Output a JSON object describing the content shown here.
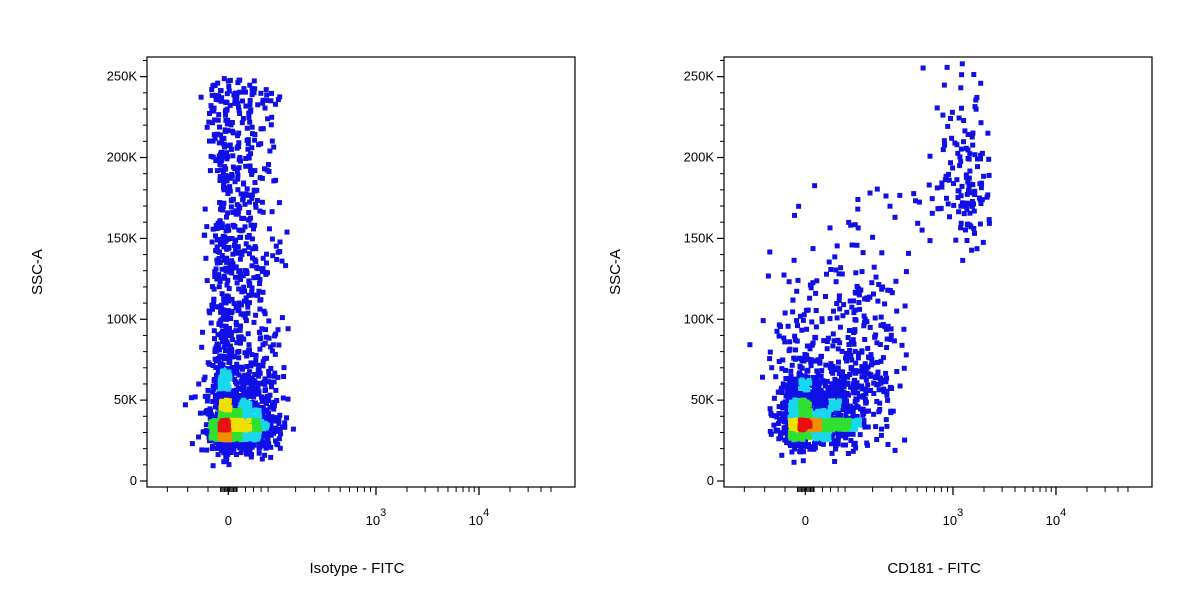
{
  "chart_data": [
    {
      "type": "scatter",
      "subtype": "flow-cytometry-density-dot-plot",
      "xlabel": "Isotype - FITC",
      "ylabel": "SSC-A",
      "x_scale": "biexponential",
      "y_scale": "linear",
      "ylim": [
        0,
        262144
      ],
      "xlim": [
        -400,
        60000
      ],
      "x_ticks": [
        {
          "value": 0,
          "label": "0",
          "exp": ""
        },
        {
          "value": 1000,
          "label": "10",
          "exp": "3"
        },
        {
          "value": 10000,
          "label": "10",
          "exp": "4"
        }
      ],
      "y_ticks": [
        {
          "value": 0,
          "label": "0"
        },
        {
          "value": 50000,
          "label": "50K"
        },
        {
          "value": 100000,
          "label": "100K"
        },
        {
          "value": 150000,
          "label": "150K"
        },
        {
          "value": 200000,
          "label": "200K"
        },
        {
          "value": 250000,
          "label": "250K"
        }
      ],
      "density_colors": [
        "#1010e6",
        "#18d8f0",
        "#30e030",
        "#f0e000",
        "#f09000",
        "#e81010"
      ],
      "populations": [
        {
          "name": "",
          "x_mean": 10,
          "x_sd": 55,
          "y_mean": 35000,
          "y_sd": 11000,
          "count": 1100
        },
        {
          "name": "",
          "x_mean": 15,
          "x_sd": 55,
          "y_min": 60000,
          "y_max": 250000,
          "count": 700
        }
      ]
    },
    {
      "type": "scatter",
      "subtype": "flow-cytometry-density-dot-plot",
      "xlabel": "CD181 - FITC",
      "ylabel": "SSC-A",
      "x_scale": "biexponential",
      "y_scale": "linear",
      "ylim": [
        0,
        262144
      ],
      "xlim": [
        -400,
        60000
      ],
      "x_ticks": [
        {
          "value": 0,
          "label": "0",
          "exp": ""
        },
        {
          "value": 1000,
          "label": "10",
          "exp": "3"
        },
        {
          "value": 10000,
          "label": "10",
          "exp": "4"
        }
      ],
      "y_ticks": [
        {
          "value": 0,
          "label": "0"
        },
        {
          "value": 50000,
          "label": "50K"
        },
        {
          "value": 100000,
          "label": "100K"
        },
        {
          "value": 150000,
          "label": "150K"
        },
        {
          "value": 200000,
          "label": "200K"
        },
        {
          "value": 250000,
          "label": "250K"
        }
      ],
      "density_colors": [
        "#1010e6",
        "#18d8f0",
        "#30e030",
        "#f0e000",
        "#f09000",
        "#e81010"
      ],
      "populations": [
        {
          "name": "",
          "x_mean": 15,
          "x_sd": 60,
          "y_mean": 38000,
          "y_sd": 11000,
          "count": 1000
        },
        {
          "name": "",
          "x_mean": 90,
          "x_sd": 120,
          "y_mean": 70000,
          "y_sd": 30000,
          "count": 450
        },
        {
          "name": "",
          "x_mean": 1300,
          "x_sd": 500,
          "y_mean": 185000,
          "y_sd": 28000,
          "count": 150
        }
      ]
    }
  ]
}
